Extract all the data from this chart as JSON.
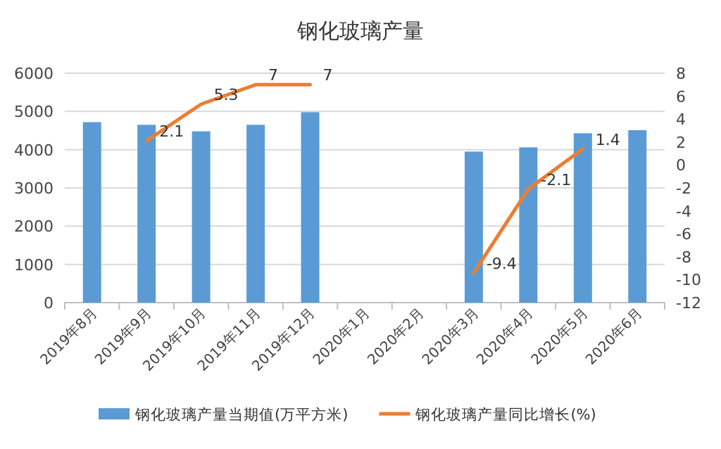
{
  "chart_data": {
    "type": "bar",
    "title": "钢化玻璃产量",
    "categories": [
      "2019年8月",
      "2019年9月",
      "2019年10月",
      "2019年11月",
      "2019年12月",
      "2020年1月",
      "2020年2月",
      "2020年3月",
      "2020年4月",
      "2020年5月",
      "2020年6月"
    ],
    "series": [
      {
        "name": "钢化玻璃产量当期值(万平方米)",
        "color": "#5b9bd5",
        "values": [
          4720,
          4650,
          4480,
          4650,
          4980,
          null,
          null,
          3950,
          4060,
          4430,
          4510
        ]
      },
      {
        "name": "钢化玻璃产量同比增长(%)",
        "color": "#ed7d31",
        "type": "line",
        "axis": "y2",
        "values": [
          null,
          2.1,
          5.3,
          7,
          7,
          null,
          null,
          -9.4,
          -2.1,
          1.4,
          null
        ],
        "value_labels": [
          null,
          "2.1",
          "5.3",
          "7",
          "7",
          null,
          null,
          "-9.4",
          "-2.1",
          "1.4",
          null
        ]
      }
    ],
    "ylim": [
      0,
      6000
    ],
    "yticks": [
      0,
      1000,
      2000,
      3000,
      4000,
      5000,
      6000
    ],
    "y2lim": [
      -12,
      8
    ],
    "y2ticks": [
      -12,
      -10,
      -8,
      -6,
      -4,
      -2,
      0,
      2,
      4,
      6,
      8
    ],
    "grid": "y",
    "legend": "bottom",
    "marker": "none"
  }
}
